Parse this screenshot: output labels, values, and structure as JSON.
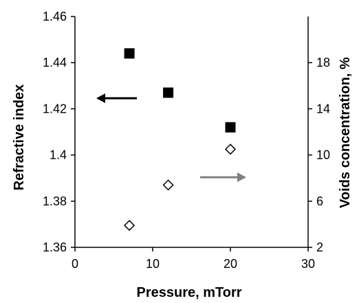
{
  "chart_data": {
    "type": "scatter",
    "title": "",
    "xlabel": "Pressure, mTorr",
    "ylabel": "Refractive index",
    "y2label": "Voids concentration, %",
    "xlim": [
      0,
      30
    ],
    "ylim": [
      1.36,
      1.46
    ],
    "y2lim": [
      2,
      22
    ],
    "x_ticks": [
      0,
      10,
      20,
      30
    ],
    "x_tick_labels": [
      "0",
      "10",
      "20",
      "30"
    ],
    "y_ticks": [
      1.36,
      1.38,
      1.4,
      1.42,
      1.44,
      1.46
    ],
    "y_tick_labels": [
      "1.36",
      "1.38",
      "1.4",
      "1.42",
      "1.44",
      "1.46"
    ],
    "y2_ticks": [
      2,
      6,
      10,
      14,
      18
    ],
    "y2_tick_labels": [
      "2",
      "6",
      "10",
      "14",
      "18"
    ],
    "grid": false,
    "legend": "none",
    "series": [
      {
        "axis": "left",
        "marker": "filled-square",
        "color": "#000000",
        "x": [
          7,
          12,
          20
        ],
        "y": [
          1.444,
          1.427,
          1.412
        ]
      },
      {
        "axis": "right",
        "marker": "open-diamond",
        "color": "#000000",
        "x": [
          7,
          12,
          20
        ],
        "y": [
          3.9,
          7.4,
          10.5
        ]
      }
    ],
    "annotations": [
      {
        "type": "arrow",
        "direction": "left",
        "color": "#000000",
        "points_to": "left-axis"
      },
      {
        "type": "arrow",
        "direction": "right",
        "color": "#808080",
        "points_to": "right-axis"
      }
    ]
  }
}
